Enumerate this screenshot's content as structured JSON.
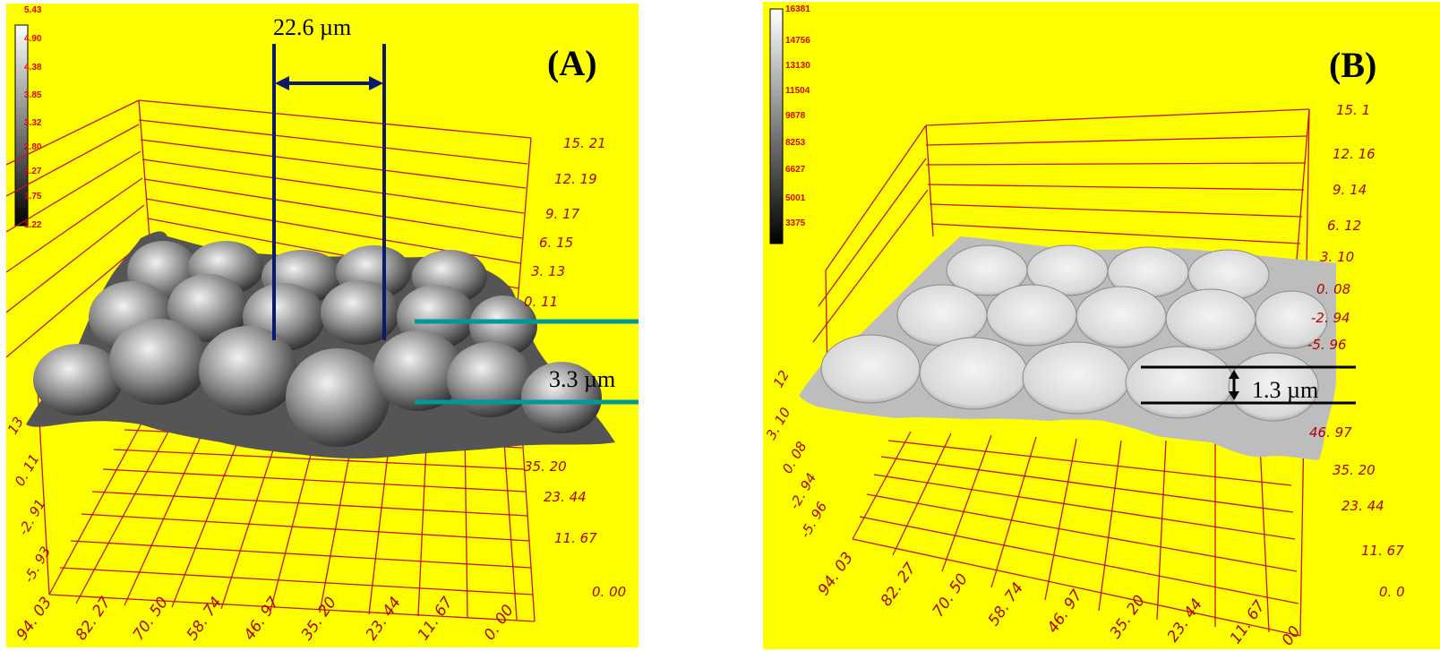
{
  "panel_a": {
    "label": "(A)",
    "colorbar_ticks": [
      "5.43",
      "4.90",
      "4.38",
      "3.85",
      "3.32",
      "2.80",
      "2.27",
      "1.75",
      "1.22"
    ],
    "right_axis_labels": [
      "15. 21",
      "12. 19",
      "9. 17",
      "6. 15",
      "3. 13",
      "0. 11"
    ],
    "left_axis_labels": [
      "13",
      "0. 11",
      "-2. 91",
      "-5. 93"
    ],
    "front_axis_labels": [
      "35. 20",
      "23. 44",
      "11. 67",
      "0. 00"
    ],
    "bottom_axis_labels": [
      "94. 03",
      "82. 27",
      "70. 50",
      "58. 74",
      "46. 97",
      "35. 20",
      "23. 44",
      "11. 67",
      "0. 00"
    ],
    "width_measure": "22.6 µm",
    "height_measure": "3.3 µm"
  },
  "panel_b": {
    "label": "(B)",
    "colorbar_ticks": [
      "16381",
      "14756",
      "13130",
      "11504",
      "9878",
      "8253",
      "6627",
      "5001",
      "3375"
    ],
    "right_axis_labels": [
      "15. 1",
      "12. 16",
      "9. 14",
      "6. 12",
      "3. 10",
      "0. 08",
      "-2. 94",
      "-5. 96"
    ],
    "left_axis_labels": [
      "12",
      "3. 10",
      "0. 08",
      "-2. 94",
      "-5. 96"
    ],
    "front_axis_labels": [
      "46. 97",
      "35. 20",
      "23. 44",
      "11. 67",
      "0. 0"
    ],
    "bottom_axis_labels": [
      "94. 03",
      "82. 27",
      "70. 50",
      "58. 74",
      "46. 97",
      "35. 20",
      "23. 44",
      "11. 67",
      "00"
    ],
    "height_measure": "1.3 µm"
  },
  "colors": {
    "background": "#ffff00",
    "grid": "#c8102e",
    "axis_text": "#b00000",
    "colorbar_text": "#e00000",
    "width_marker": "#0a1a6e",
    "height_marker_a": "#009999",
    "height_marker_b": "#000000"
  }
}
